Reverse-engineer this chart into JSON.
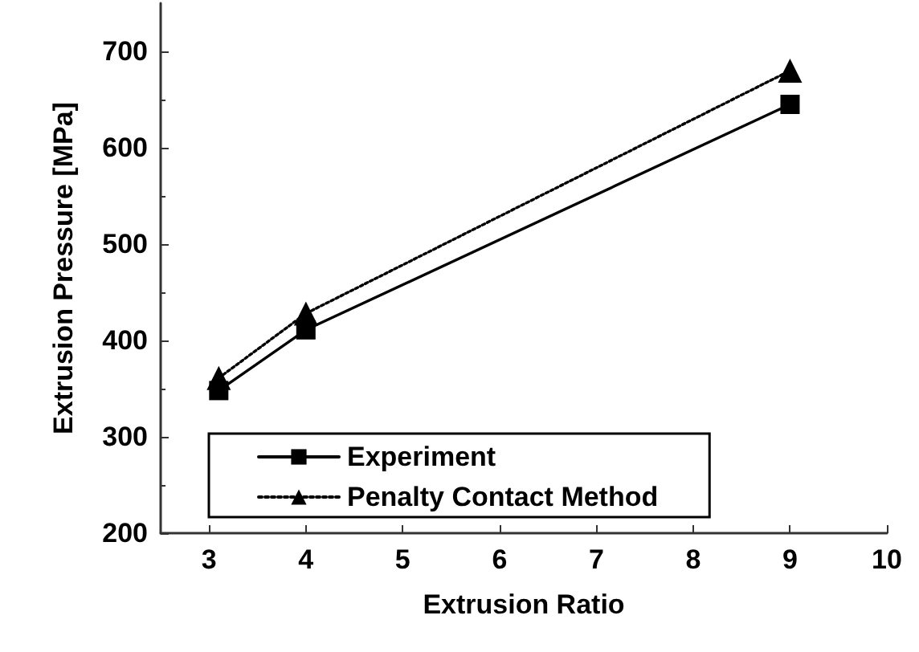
{
  "chart_data": {
    "type": "line",
    "xlabel": "Extrusion Ratio",
    "ylabel": "Extrusion Pressure [MPa]",
    "x": [
      3.1,
      4,
      9
    ],
    "series": [
      {
        "name": "Experiment",
        "color": "#000000",
        "values": [
          348,
          411,
          645
        ],
        "marker": "square",
        "line_style": "solid"
      },
      {
        "name": "Penalty Contact Method",
        "color": "#000000",
        "values": [
          361,
          428,
          680
        ],
        "marker": "triangle",
        "line_style": "dotted"
      }
    ],
    "xlim": [
      2.5,
      10
    ],
    "xticks": [
      3,
      4,
      5,
      6,
      7,
      8,
      9,
      10
    ],
    "ylim": [
      200,
      750
    ],
    "yticks": [
      200,
      300,
      400,
      500,
      600,
      700
    ],
    "grid": false,
    "legend": "bottom"
  }
}
